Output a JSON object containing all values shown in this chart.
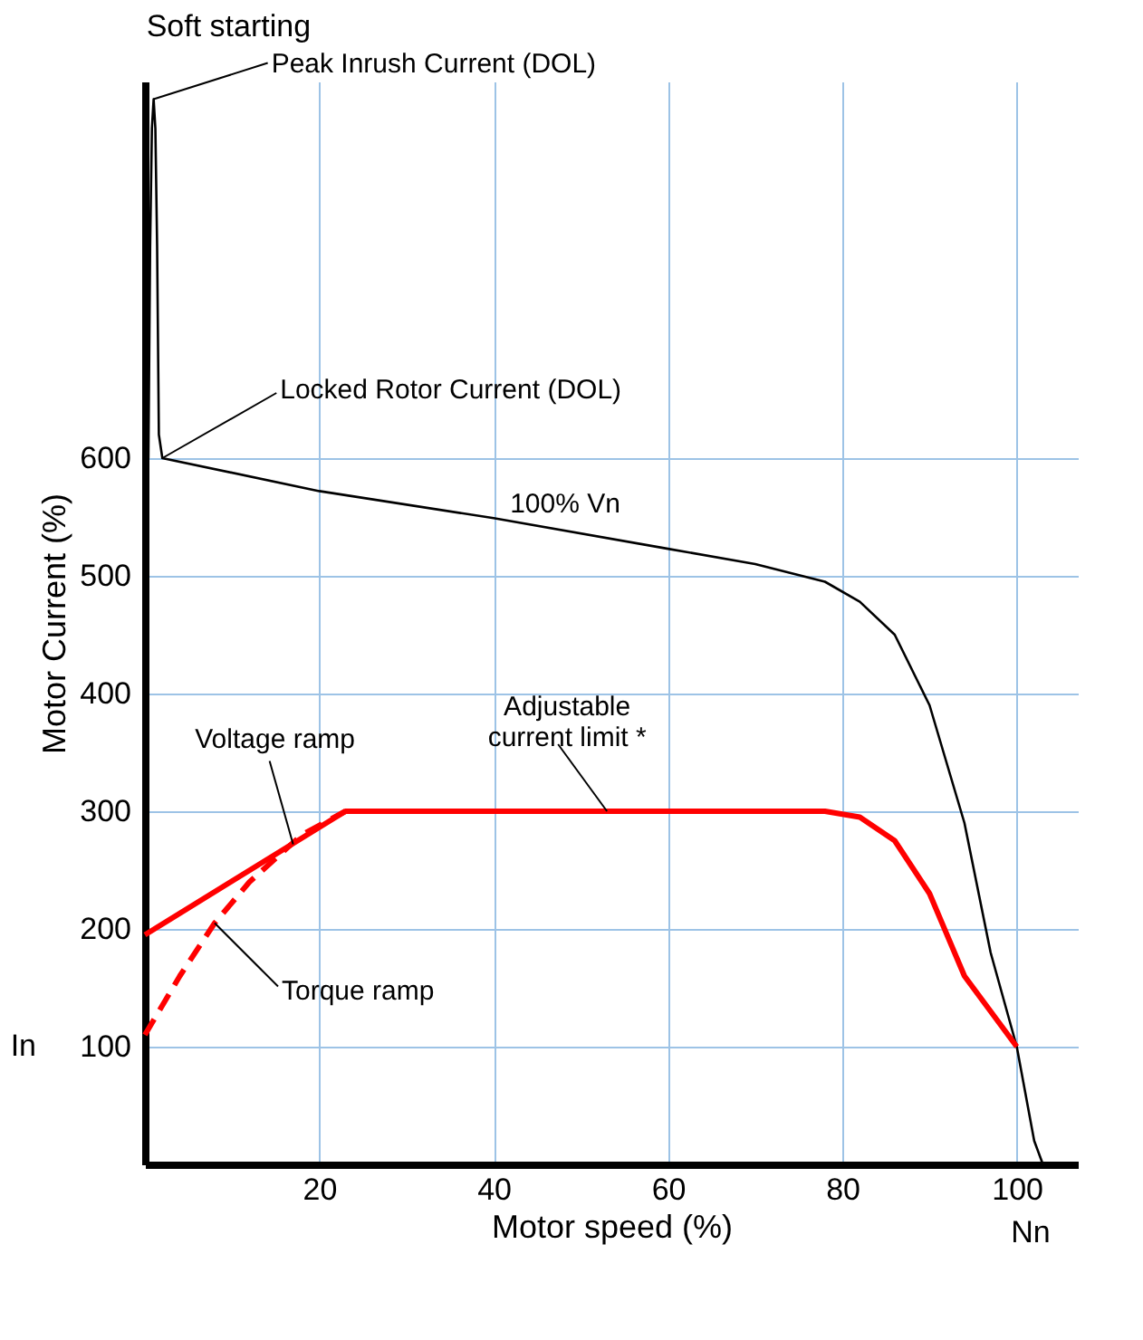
{
  "chart_data": {
    "type": "line",
    "title": "Soft starting",
    "xlabel": "Motor speed (%)",
    "ylabel": "Motor Current (%)",
    "xlim": [
      0,
      107
    ],
    "ylim": [
      0,
      920
    ],
    "xticks": [
      20,
      40,
      60,
      80,
      100
    ],
    "yticks": [
      100,
      200,
      300,
      400,
      500,
      600
    ],
    "grid": true,
    "series": [
      {
        "color": "#000000",
        "line_style": "solid",
        "x": [
          0.4,
          0.6,
          0.8,
          1,
          1.2,
          1.4,
          1.6,
          2,
          20,
          40,
          60,
          70,
          78,
          82,
          86,
          90,
          94,
          97,
          100,
          102,
          103
        ],
        "values": [
          600,
          780,
          880,
          905,
          880,
          780,
          620,
          600,
          572,
          549,
          523,
          510,
          495,
          478,
          450,
          390,
          290,
          180,
          100,
          20,
          0
        ]
      },
      {
        "color": "#ff0000",
        "line_style": "solid",
        "x": [
          0,
          23,
          78,
          82,
          86,
          90,
          94,
          100
        ],
        "values": [
          195,
          300,
          300,
          295,
          275,
          230,
          160,
          100
        ]
      },
      {
        "color": "#ff0000",
        "line_style": "dashed",
        "x": [
          0,
          4,
          8,
          12,
          18,
          23
        ],
        "values": [
          110,
          160,
          205,
          240,
          280,
          300
        ]
      }
    ],
    "annotations": [
      {
        "text": "Peak Inrush Current (DOL)",
        "x": 1,
        "y": 905
      },
      {
        "text": "Locked Rotor Current (DOL)",
        "x": 2,
        "y": 600
      },
      "100% Vn",
      {
        "text": "Adjustable\ncurrent limit *",
        "x": 53,
        "y": 300
      },
      {
        "text": "Voltage ramp",
        "x": 17,
        "y": 272
      },
      {
        "text": "Torque ramp",
        "x": 8,
        "y": 205
      },
      "In",
      "Nn"
    ]
  }
}
